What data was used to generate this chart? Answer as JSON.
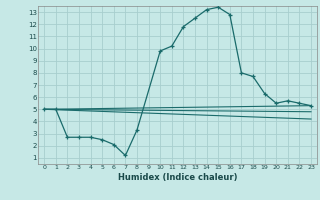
{
  "xlabel": "Humidex (Indice chaleur)",
  "bg_color": "#c6e8e6",
  "grid_color": "#a8cece",
  "line_color": "#1a6b6b",
  "xlim": [
    -0.5,
    23.5
  ],
  "ylim": [
    0.5,
    13.5
  ],
  "xticks": [
    0,
    1,
    2,
    3,
    4,
    5,
    6,
    7,
    8,
    9,
    10,
    11,
    12,
    13,
    14,
    15,
    16,
    17,
    18,
    19,
    20,
    21,
    22,
    23
  ],
  "yticks": [
    1,
    2,
    3,
    4,
    5,
    6,
    7,
    8,
    9,
    10,
    11,
    12,
    13
  ],
  "main_curve": {
    "x": [
      0,
      1,
      2,
      3,
      4,
      5,
      6,
      7,
      8,
      10,
      11,
      12,
      13,
      14,
      15,
      16,
      17,
      18,
      19,
      20,
      21,
      22,
      23
    ],
    "y": [
      5,
      5,
      2.7,
      2.7,
      2.7,
      2.5,
      2.1,
      1.2,
      3.3,
      9.8,
      10.2,
      11.8,
      12.5,
      13.2,
      13.4,
      12.8,
      8.0,
      7.7,
      6.3,
      5.5,
      5.7,
      5.5,
      5.3
    ]
  },
  "extra_curves": [
    {
      "x": [
        0,
        23
      ],
      "y": [
        5.0,
        5.3
      ]
    },
    {
      "x": [
        0,
        23
      ],
      "y": [
        5.0,
        4.8
      ]
    },
    {
      "x": [
        0,
        23
      ],
      "y": [
        5.0,
        4.2
      ]
    }
  ]
}
